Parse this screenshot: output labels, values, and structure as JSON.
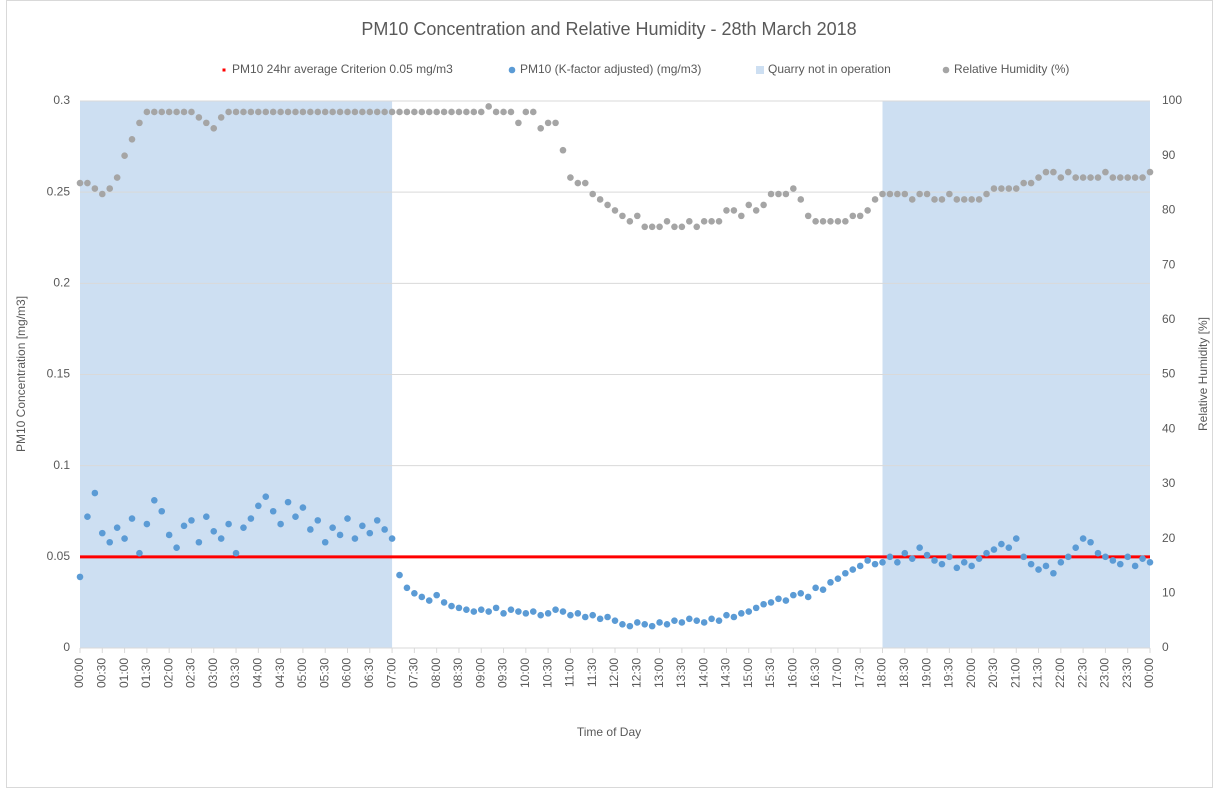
{
  "chart_data": {
    "type": "scatter",
    "title": "PM10 Concentration and Relative Humidity - 28th March 2018",
    "x_label": "Time of Day",
    "y_label": "PM10 Concentration [mg/m3]",
    "y2_label": "Relative Humidity [%]",
    "legend": "top",
    "grid": true,
    "xlim": [
      0,
      1440
    ],
    "ylim": [
      0,
      0.3
    ],
    "y2lim": [
      0,
      100
    ],
    "yticks": [
      0,
      0.05,
      0.1,
      0.15,
      0.2,
      0.25,
      0.3
    ],
    "y2ticks": [
      0,
      10,
      20,
      30,
      40,
      50,
      60,
      70,
      80,
      90,
      100
    ],
    "xticks": [
      {
        "value": 0,
        "label": "00:00"
      },
      {
        "value": 30,
        "label": "00:30"
      },
      {
        "value": 60,
        "label": "01:00"
      },
      {
        "value": 90,
        "label": "01:30"
      },
      {
        "value": 120,
        "label": "02:00"
      },
      {
        "value": 150,
        "label": "02:30"
      },
      {
        "value": 180,
        "label": "03:00"
      },
      {
        "value": 210,
        "label": "03:30"
      },
      {
        "value": 240,
        "label": "04:00"
      },
      {
        "value": 270,
        "label": "04:30"
      },
      {
        "value": 300,
        "label": "05:00"
      },
      {
        "value": 330,
        "label": "05:30"
      },
      {
        "value": 360,
        "label": "06:00"
      },
      {
        "value": 390,
        "label": "06:30"
      },
      {
        "value": 420,
        "label": "07:00"
      },
      {
        "value": 450,
        "label": "07:30"
      },
      {
        "value": 480,
        "label": "08:00"
      },
      {
        "value": 510,
        "label": "08:30"
      },
      {
        "value": 540,
        "label": "09:00"
      },
      {
        "value": 570,
        "label": "09:30"
      },
      {
        "value": 600,
        "label": "10:00"
      },
      {
        "value": 630,
        "label": "10:30"
      },
      {
        "value": 660,
        "label": "11:00"
      },
      {
        "value": 690,
        "label": "11:30"
      },
      {
        "value": 720,
        "label": "12:00"
      },
      {
        "value": 750,
        "label": "12:30"
      },
      {
        "value": 780,
        "label": "13:00"
      },
      {
        "value": 810,
        "label": "13:30"
      },
      {
        "value": 840,
        "label": "14:00"
      },
      {
        "value": 870,
        "label": "14:30"
      },
      {
        "value": 900,
        "label": "15:00"
      },
      {
        "value": 930,
        "label": "15:30"
      },
      {
        "value": 960,
        "label": "16:00"
      },
      {
        "value": 990,
        "label": "16:30"
      },
      {
        "value": 1020,
        "label": "17:00"
      },
      {
        "value": 1050,
        "label": "17:30"
      },
      {
        "value": 1080,
        "label": "18:00"
      },
      {
        "value": 1110,
        "label": "18:30"
      },
      {
        "value": 1140,
        "label": "19:00"
      },
      {
        "value": 1170,
        "label": "19:30"
      },
      {
        "value": 1200,
        "label": "20:00"
      },
      {
        "value": 1230,
        "label": "20:30"
      },
      {
        "value": 1260,
        "label": "21:00"
      },
      {
        "value": 1290,
        "label": "21:30"
      },
      {
        "value": 1320,
        "label": "22:00"
      },
      {
        "value": 1350,
        "label": "22:30"
      },
      {
        "value": 1380,
        "label": "23:00"
      },
      {
        "value": 1410,
        "label": "23:30"
      },
      {
        "value": 1440,
        "label": "00:00"
      }
    ],
    "x": [
      0,
      10,
      20,
      30,
      40,
      50,
      60,
      70,
      80,
      90,
      100,
      110,
      120,
      130,
      140,
      150,
      160,
      170,
      180,
      190,
      200,
      210,
      220,
      230,
      240,
      250,
      260,
      270,
      280,
      290,
      300,
      310,
      320,
      330,
      340,
      350,
      360,
      370,
      380,
      390,
      400,
      410,
      420,
      430,
      440,
      450,
      460,
      470,
      480,
      490,
      500,
      510,
      520,
      530,
      540,
      550,
      560,
      570,
      580,
      590,
      600,
      610,
      620,
      630,
      640,
      650,
      660,
      670,
      680,
      690,
      700,
      710,
      720,
      730,
      740,
      750,
      760,
      770,
      780,
      790,
      800,
      810,
      820,
      830,
      840,
      850,
      860,
      870,
      880,
      890,
      900,
      910,
      920,
      930,
      940,
      950,
      960,
      970,
      980,
      990,
      1000,
      1010,
      1020,
      1030,
      1040,
      1050,
      1060,
      1070,
      1080,
      1090,
      1100,
      1110,
      1120,
      1130,
      1140,
      1150,
      1160,
      1170,
      1180,
      1190,
      1200,
      1210,
      1220,
      1230,
      1240,
      1250,
      1260,
      1270,
      1280,
      1290,
      1300,
      1310,
      1320,
      1330,
      1340,
      1350,
      1360,
      1370,
      1380,
      1390,
      1400,
      1410,
      1420,
      1430,
      1440
    ],
    "series": [
      {
        "name": "PM10 24hr average Criterion 0.05 mg/m3",
        "kind": "line",
        "color": "#ff0000",
        "x": [
          0,
          1440
        ],
        "values": [
          0.05,
          0.05
        ]
      },
      {
        "name": "PM10 (K-factor adjusted) (mg/m3)",
        "kind": "scatter",
        "color": "#5b9bd5",
        "values": [
          0.039,
          0.072,
          0.085,
          0.063,
          0.058,
          0.066,
          0.06,
          0.071,
          0.052,
          0.068,
          0.081,
          0.075,
          0.062,
          0.055,
          0.067,
          0.07,
          0.058,
          0.072,
          0.064,
          0.06,
          0.068,
          0.052,
          0.066,
          0.071,
          0.078,
          0.083,
          0.075,
          0.068,
          0.08,
          0.072,
          0.077,
          0.065,
          0.07,
          0.058,
          0.066,
          0.062,
          0.071,
          0.06,
          0.067,
          0.063,
          0.07,
          0.065,
          0.06,
          0.04,
          0.033,
          0.03,
          0.028,
          0.026,
          0.029,
          0.025,
          0.023,
          0.022,
          0.021,
          0.02,
          0.021,
          0.02,
          0.022,
          0.019,
          0.021,
          0.02,
          0.019,
          0.02,
          0.018,
          0.019,
          0.021,
          0.02,
          0.018,
          0.019,
          0.017,
          0.018,
          0.016,
          0.017,
          0.015,
          0.013,
          0.012,
          0.014,
          0.013,
          0.012,
          0.014,
          0.013,
          0.015,
          0.014,
          0.016,
          0.015,
          0.014,
          0.016,
          0.015,
          0.018,
          0.017,
          0.019,
          0.02,
          0.022,
          0.024,
          0.025,
          0.027,
          0.026,
          0.029,
          0.03,
          0.028,
          0.033,
          0.032,
          0.036,
          0.038,
          0.041,
          0.043,
          0.045,
          0.048,
          0.046,
          0.047,
          0.05,
          0.047,
          0.052,
          0.049,
          0.055,
          0.051,
          0.048,
          0.046,
          0.05,
          0.044,
          0.047,
          0.045,
          0.049,
          0.052,
          0.054,
          0.057,
          0.055,
          0.06,
          0.05,
          0.046,
          0.043,
          0.045,
          0.041,
          0.047,
          0.05,
          0.055,
          0.06,
          0.058,
          0.052,
          0.05,
          0.048,
          0.046,
          0.05,
          0.045,
          0.049,
          0.047
        ]
      },
      {
        "name": "Quarry not in operation",
        "kind": "span",
        "color": "#cddff2",
        "spans": [
          [
            0,
            420
          ],
          [
            1080,
            1440
          ]
        ]
      },
      {
        "name": "Relative Humidity (%)",
        "kind": "scatter",
        "color": "#a5a5a5",
        "axis": "y2",
        "values": [
          85,
          85,
          84,
          83,
          84,
          86,
          90,
          93,
          96,
          98,
          98,
          98,
          98,
          98,
          98,
          98,
          97,
          96,
          95,
          97,
          98,
          98,
          98,
          98,
          98,
          98,
          98,
          98,
          98,
          98,
          98,
          98,
          98,
          98,
          98,
          98,
          98,
          98,
          98,
          98,
          98,
          98,
          98,
          98,
          98,
          98,
          98,
          98,
          98,
          98,
          98,
          98,
          98,
          98,
          98,
          99,
          98,
          98,
          98,
          96,
          98,
          98,
          95,
          96,
          96,
          91,
          86,
          85,
          85,
          83,
          82,
          81,
          80,
          79,
          78,
          79,
          77,
          77,
          77,
          78,
          77,
          77,
          78,
          77,
          78,
          78,
          78,
          80,
          80,
          79,
          81,
          80,
          81,
          83,
          83,
          83,
          84,
          82,
          79,
          78,
          78,
          78,
          78,
          78,
          79,
          79,
          80,
          82,
          83,
          83,
          83,
          83,
          82,
          83,
          83,
          82,
          82,
          83,
          82,
          82,
          82,
          82,
          83,
          84,
          84,
          84,
          84,
          85,
          85,
          86,
          87,
          87,
          86,
          87,
          86,
          86,
          86,
          86,
          87,
          86,
          86,
          86,
          86,
          86,
          87
        ]
      }
    ]
  }
}
